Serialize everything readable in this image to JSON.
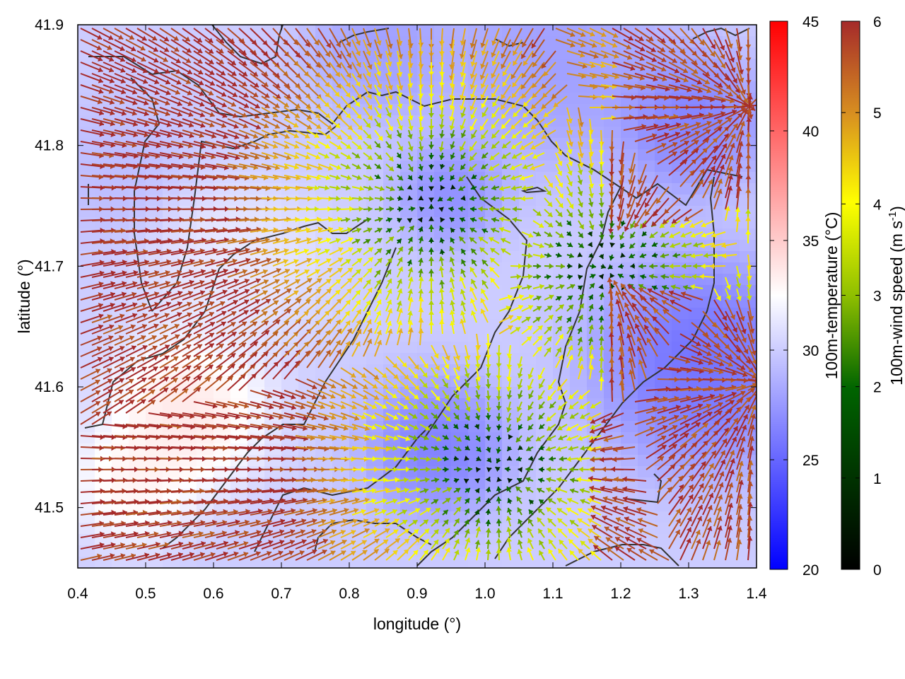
{
  "chart_data": {
    "type": "heatmap",
    "xlabel": "longitude (°)",
    "ylabel": "latitude (°)",
    "xlim": [
      0.4,
      1.4
    ],
    "ylim": [
      41.45,
      41.9
    ],
    "xticks": [
      "0.4",
      "0.5",
      "0.6",
      "0.7",
      "0.8",
      "0.9",
      "1.0",
      "1.1",
      "1.2",
      "1.3",
      "1.4"
    ],
    "yticks": [
      "41.5",
      "41.6",
      "41.7",
      "41.8",
      "41.9"
    ],
    "grid": false,
    "temperature_colorbar": {
      "label": "100m-temperature (°C)",
      "range": [
        20,
        45
      ],
      "ticks": [
        "20",
        "25",
        "30",
        "35",
        "40",
        "45"
      ],
      "colors": [
        "#0000ff",
        "#ffffff",
        "#ff0000"
      ]
    },
    "wind_colorbar": {
      "label": "100m-wind speed (m s",
      "label_sup": "-1",
      "label_end": ")",
      "range": [
        0,
        6
      ],
      "ticks": [
        "0",
        "1",
        "2",
        "3",
        "4",
        "5",
        "6"
      ],
      "colors": [
        "#000000",
        "#006400",
        "#8fbf00",
        "#ffff00",
        "#e8b020",
        "#c07020",
        "#a52a2a"
      ]
    },
    "vector_field": {
      "description_value": "wind vectors colored by speed",
      "max_speed": 6
    },
    "contour_color": "#333333"
  }
}
